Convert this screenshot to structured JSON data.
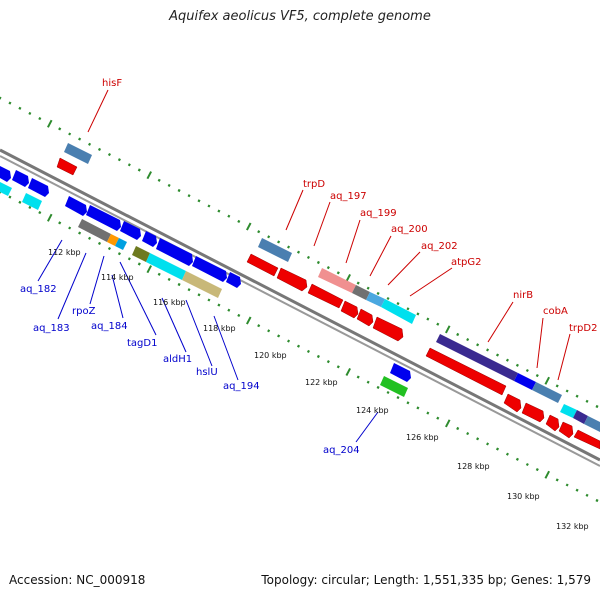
{
  "title": "Aquifex aeolicus VF5, complete genome",
  "footer": {
    "accession": "Accession: NC_000918",
    "stats": "Topology: circular; Length: 1,551,335 bp; Genes: 1,579"
  },
  "colors": {
    "tick": "#2e8b2e",
    "axis": "#808080",
    "gene_label_red": "#cc0000",
    "gene_label_blue": "#0000cc",
    "forward_gene": "#0000ee",
    "reverse_gene": "#ee0000"
  },
  "scale_labels": [
    "112 kbp",
    "114 kbp",
    "116 kbp",
    "118 kbp",
    "120 kbp",
    "122 kbp",
    "124 kbp",
    "126 kbp",
    "128 kbp",
    "130 kbp",
    "132 kbp"
  ],
  "gene_labels_top": [
    "hisF",
    "trpD",
    "aq_197",
    "aq_199",
    "aq_200",
    "aq_202",
    "atpG2",
    "nirB",
    "cobA",
    "trpD2"
  ],
  "gene_labels_bottom": [
    "aq_182",
    "aq_183",
    "rpoZ",
    "aq_184",
    "tagD1",
    "aldH1",
    "hslU",
    "aq_194",
    "aq_204"
  ]
}
